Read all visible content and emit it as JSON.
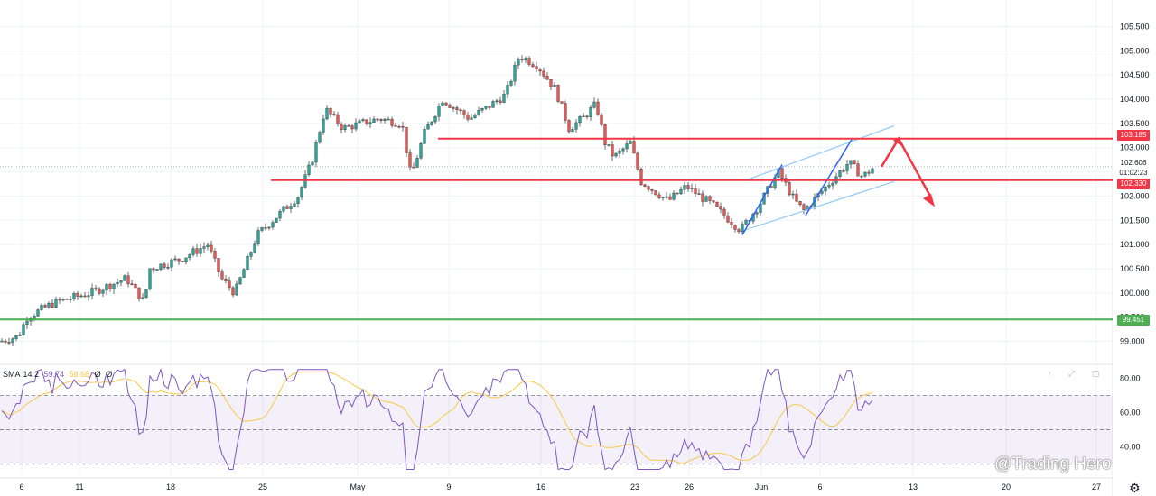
{
  "chart_data": {
    "type": "candlestick",
    "instrument_levels": [
      {
        "label": "103.185",
        "value": 103.185,
        "color": "#f23645"
      },
      {
        "label": "102.330",
        "value": 102.33,
        "color": "#f23645"
      },
      {
        "label": "99.451",
        "value": 99.451,
        "color": "#4caf50"
      }
    ],
    "current_price": {
      "label": "102.606",
      "countdown": "01:02:23",
      "value": 102.606,
      "color": "#26a69a"
    },
    "price_axis": {
      "ticks": [
        "105.500",
        "105.000",
        "104.500",
        "104.000",
        "103.500",
        "103.000",
        "102.500",
        "102.000",
        "101.500",
        "101.000",
        "100.500",
        "100.000",
        "99.500",
        "99.000"
      ],
      "ylim": [
        98.6,
        105.9
      ]
    },
    "time_axis": {
      "ticks": [
        "6",
        "11",
        "18",
        "25",
        "May",
        "9",
        "16",
        "23",
        "26",
        "Jun",
        "6",
        "13",
        "20",
        "27"
      ]
    },
    "drawings": {
      "channel_upper": {
        "from": [
          3,
          102.32
        ],
        "to": [
          5,
          103.45
        ]
      },
      "channel_lower": {
        "from": [
          3,
          101.3
        ],
        "to": [
          5,
          102.3
        ]
      },
      "projection": [
        [
          102.606,
          102.59
        ],
        [
          103.185,
          103.185
        ],
        [
          102.0,
          101.85
        ]
      ]
    },
    "indicator": {
      "name": "SMA",
      "params": "14 2",
      "value1": "59.74",
      "value2": "58.68",
      "extra1": "Ø",
      "extra2": "Ø",
      "ticks": [
        "80.00",
        "60.00",
        "40.00"
      ],
      "levels": [
        70,
        50,
        30
      ],
      "ylim": [
        22,
        88
      ],
      "line_color": "#7e57c2",
      "sma_color": "#f7c948"
    },
    "colors": {
      "up": "#26a69a",
      "down": "#ef5350",
      "level_red": "#f23645",
      "level_green": "#4caf50",
      "channel": "#90caf9",
      "arrow": "#f23645"
    }
  },
  "watermark": "@Trading Hero",
  "settings_icon": "gear-icon"
}
